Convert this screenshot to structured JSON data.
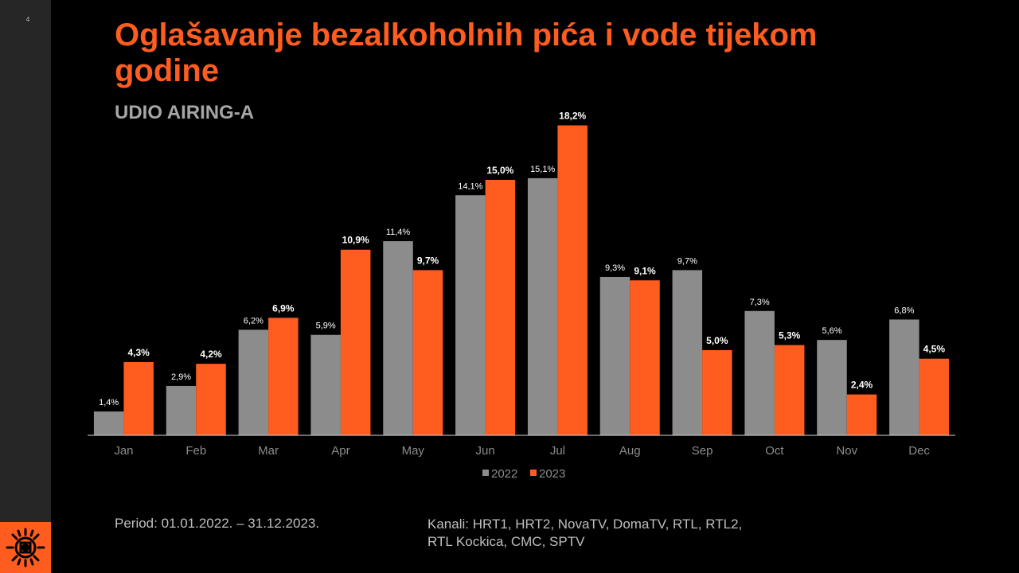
{
  "slide": {
    "page_number": "4",
    "title": "Oglašavanje bezalkoholnih pića i vode tijekom godine",
    "subtitle": "UDIO AIRING-A",
    "period": "Period: 01.01.2022. – 31.12.2023.",
    "channels": "Kanali: HRT1, HRT2, NovaTV, DomaTV, RTL, RTL2, RTL Kockica, CMC, SPTV",
    "logo_icon": "eye-sun-logo-icon"
  },
  "colors": {
    "accent": "#ff5c1f",
    "series_2022": "#8c8c8c",
    "series_2023": "#ff5c1f",
    "axis_label": "#8c8c8c",
    "label_2022": "#ffffff",
    "label_2023": "#ffffff"
  },
  "chart_data": {
    "type": "bar",
    "title": "",
    "xlabel": "",
    "ylabel": "",
    "ylim": [
      0,
      20
    ],
    "grid": false,
    "legend_position": "bottom",
    "value_unit": "%",
    "categories": [
      "Jan",
      "Feb",
      "Mar",
      "Apr",
      "May",
      "Jun",
      "Jul",
      "Aug",
      "Sep",
      "Oct",
      "Nov",
      "Dec"
    ],
    "series": [
      {
        "name": "2022",
        "values": [
          1.4,
          2.9,
          6.2,
          5.9,
          11.4,
          14.1,
          15.1,
          9.3,
          9.7,
          7.3,
          5.6,
          6.8
        ],
        "labels": [
          "1,4%",
          "2,9%",
          "6,2%",
          "5,9%",
          "11,4%",
          "14,1%",
          "15,1%",
          "9,3%",
          "9,7%",
          "7,3%",
          "5,6%",
          "6,8%"
        ]
      },
      {
        "name": "2023",
        "values": [
          4.3,
          4.2,
          6.9,
          10.9,
          9.7,
          15.0,
          18.2,
          9.1,
          5.0,
          5.3,
          2.4,
          4.5
        ],
        "labels": [
          "4,3%",
          "4,2%",
          "6,9%",
          "10,9%",
          "9,7%",
          "15,0%",
          "18,2%",
          "9,1%",
          "5,0%",
          "5,3%",
          "2,4%",
          "4,5%"
        ]
      }
    ]
  }
}
